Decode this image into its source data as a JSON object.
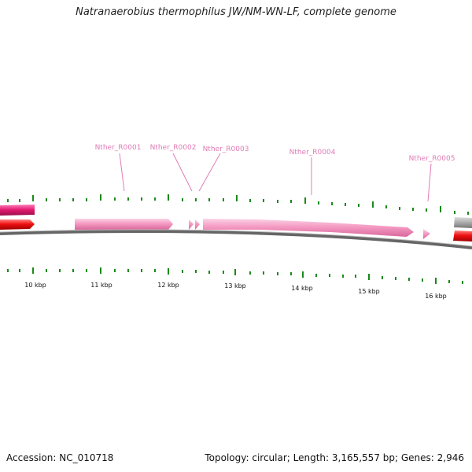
{
  "title": "Natranaerobius thermophilus JW/NM-WN-LF, complete genome",
  "footer": {
    "accession": "Accession: NC_010718",
    "summary": "Topology: circular; Length: 3,165,557 bp; Genes: 2,946"
  },
  "scale_labels": [
    "10 kbp",
    "11 kbp",
    "12 kbp",
    "13 kbp",
    "14 kbp",
    "15 kbp",
    "16 kbp"
  ],
  "gene_labels": [
    "Nther_R0001",
    "Nther_R0002",
    "Nther_R0003",
    "Nther_R0004",
    "Nther_R0005"
  ],
  "colors": {
    "rrna": "#f49ac2",
    "cds_red": "#ee1111",
    "cds_magenta": "#e0196e",
    "tick_green": "#1a8a1a",
    "backbone": "#777777",
    "gray_feature": "#aaaaaa",
    "label": "#e07bb5"
  }
}
